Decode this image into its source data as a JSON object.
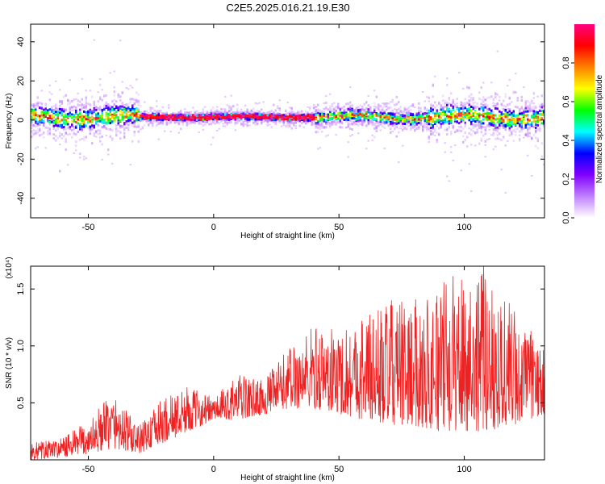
{
  "title": "C2E5.2025.016.21.19.E30",
  "chart_data": [
    {
      "type": "heatmap",
      "xlabel": "Height of straight line (km)",
      "ylabel": "Frequency (Hz)",
      "xlim": [
        -73,
        132
      ],
      "ylim": [
        -50,
        49
      ],
      "xticks": [
        -50,
        0,
        50,
        100
      ],
      "yticks": [
        40,
        20,
        0,
        -20,
        -40
      ],
      "colorbar": {
        "label": "Normalized spectral amplitude",
        "range": [
          0,
          1
        ],
        "ticks": [
          "0.0",
          "0.2",
          "0.4",
          "0.6",
          "0.8"
        ],
        "colors": [
          "#ffffff",
          "#c080ff",
          "#8000ff",
          "#0000ff",
          "#00ffff",
          "#00ff00",
          "#ffff00",
          "#ff8000",
          "#ff0000",
          "#ff0080"
        ]
      },
      "ridge": {
        "description_center_hz": 1.5,
        "segments": [
          {
            "x_range": [
              -73,
              -30
            ],
            "center_hz": 2,
            "spread_hz": 9
          },
          {
            "x_range": [
              -30,
              40
            ],
            "center_hz": 1.5,
            "spread_hz": 3
          },
          {
            "x_range": [
              40,
              85
            ],
            "center_hz": 1.5,
            "spread_hz": 5
          },
          {
            "x_range": [
              85,
              132
            ],
            "center_hz": 2,
            "spread_hz": 9
          }
        ]
      }
    },
    {
      "type": "line",
      "xlabel": "Height of straight line (km)",
      "ylabel": "SNR (10 * v/v)",
      "y_multiplier": "(x10⁴)",
      "xlim": [
        -73,
        132
      ],
      "ylim": [
        0,
        1.7
      ],
      "xticks": [
        -50,
        0,
        50,
        100
      ],
      "yticks": [
        0.5,
        1.0,
        1.5
      ],
      "ytick_labels": [
        "0.5",
        "1.0",
        "1.5"
      ],
      "color": "#ee2222",
      "envelope": {
        "x": [
          -73,
          -60,
          -50,
          -40,
          -30,
          -20,
          -10,
          0,
          10,
          20,
          30,
          40,
          50,
          60,
          70,
          80,
          90,
          100,
          110,
          120,
          132
        ],
        "low": [
          0.0,
          0.02,
          0.05,
          0.1,
          0.05,
          0.15,
          0.25,
          0.35,
          0.35,
          0.4,
          0.45,
          0.45,
          0.4,
          0.35,
          0.3,
          0.3,
          0.25,
          0.25,
          0.25,
          0.3,
          0.4
        ],
        "high": [
          0.15,
          0.2,
          0.35,
          0.6,
          0.3,
          0.55,
          0.65,
          0.55,
          0.75,
          0.7,
          1.0,
          1.2,
          1.15,
          1.3,
          1.4,
          1.4,
          1.55,
          1.7,
          1.7,
          1.35,
          0.95
        ]
      }
    }
  ]
}
